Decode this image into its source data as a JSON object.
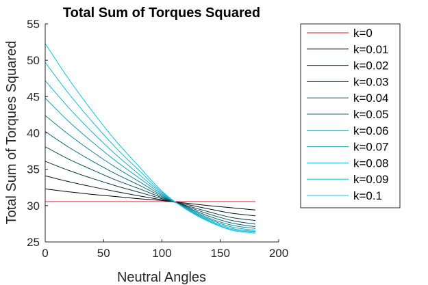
{
  "chart_data": {
    "type": "line",
    "title": "Total Sum of Torques Squared",
    "xlabel": "Neutral Angles",
    "ylabel": "Total Sum of Torques Squared",
    "xlim": [
      0,
      200
    ],
    "ylim": [
      25,
      55
    ],
    "xticks": [
      0,
      50,
      100,
      150,
      200
    ],
    "yticks": [
      25,
      30,
      35,
      40,
      45,
      50,
      55
    ],
    "grid": false,
    "legend_position": "outside-right",
    "x": [
      0,
      20,
      40,
      60,
      80,
      100,
      120,
      140,
      160,
      180
    ],
    "series": [
      {
        "name": "k=0",
        "color": "#e8192c",
        "values": [
          30.55,
          30.55,
          30.55,
          30.55,
          30.55,
          30.55,
          30.55,
          30.55,
          30.55,
          30.55
        ]
      },
      {
        "name": "k=0.01",
        "color": "#000000",
        "values": [
          32.3,
          31.9,
          31.55,
          31.25,
          30.95,
          30.7,
          30.35,
          30.0,
          29.7,
          29.4
        ]
      },
      {
        "name": "k=0.02",
        "color": "#031a1e",
        "values": [
          34.1,
          33.3,
          32.6,
          31.95,
          31.35,
          30.8,
          30.2,
          29.55,
          28.95,
          28.6
        ]
      },
      {
        "name": "k=0.03",
        "color": "#06343c",
        "values": [
          36.1,
          34.85,
          33.75,
          32.75,
          31.85,
          30.95,
          30.05,
          29.15,
          28.35,
          27.95
        ]
      },
      {
        "name": "k=0.04",
        "color": "#094e5a",
        "values": [
          38.1,
          36.4,
          34.95,
          33.55,
          32.35,
          31.1,
          29.95,
          28.85,
          27.95,
          27.45
        ]
      },
      {
        "name": "k=0.05",
        "color": "#0c6878",
        "values": [
          40.2,
          38.05,
          36.15,
          34.4,
          32.85,
          31.25,
          29.85,
          28.55,
          27.6,
          27.1
        ]
      },
      {
        "name": "k=0.06",
        "color": "#0f8296",
        "values": [
          42.4,
          39.8,
          37.45,
          35.3,
          33.35,
          31.4,
          29.8,
          28.3,
          27.3,
          26.85
        ]
      },
      {
        "name": "k=0.07",
        "color": "#129cb4",
        "values": [
          44.8,
          41.6,
          38.8,
          36.2,
          33.85,
          31.55,
          29.7,
          28.15,
          27.05,
          26.6
        ]
      },
      {
        "name": "k=0.08",
        "color": "#15b1cc",
        "values": [
          47.2,
          43.5,
          40.15,
          37.1,
          34.35,
          31.7,
          29.65,
          28.0,
          26.85,
          26.45
        ]
      },
      {
        "name": "k=0.09",
        "color": "#17bdd9",
        "values": [
          49.7,
          45.45,
          41.6,
          38.05,
          34.9,
          31.85,
          29.6,
          27.9,
          26.7,
          26.35
        ]
      },
      {
        "name": "k=0.1",
        "color": "#19c5e2",
        "values": [
          52.3,
          47.45,
          43.05,
          39.0,
          35.45,
          32.0,
          29.55,
          27.8,
          26.6,
          26.2
        ]
      }
    ]
  }
}
